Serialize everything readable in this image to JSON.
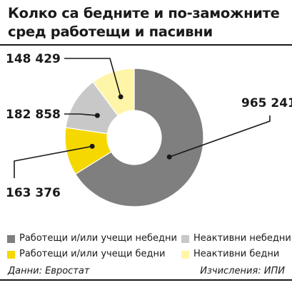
{
  "chart_data": {
    "type": "pie",
    "title": "Колко са бедните и по-заможните сред работещи и пасивни",
    "categories": [
      "Работещи и/или учещи небедни",
      "Работещи и/или учещи бедни",
      "Неактивни небедни",
      "Неактивни бедни"
    ],
    "values": [
      965241,
      163376,
      182858,
      148429
    ],
    "value_labels": [
      "965 241",
      "163 376",
      "182 858",
      "148 429"
    ],
    "colors": [
      "#7f7f7f",
      "#f5d800",
      "#c8c8c8",
      "#fff5a8"
    ],
    "donut": true,
    "legend_position": "bottom"
  },
  "legend": [
    {
      "label": "Работещи и/или учещи небедни",
      "color": "#7f7f7f"
    },
    {
      "label": "Неактивни небедни",
      "color": "#c8c8c8"
    },
    {
      "label": "Работещи и/или учещи бедни",
      "color": "#f5d800"
    },
    {
      "label": "Неактивни бедни",
      "color": "#fff5a8"
    }
  ],
  "footer": {
    "source": "Данни: Евростат",
    "calculations": "Изчисления: ИПИ"
  }
}
